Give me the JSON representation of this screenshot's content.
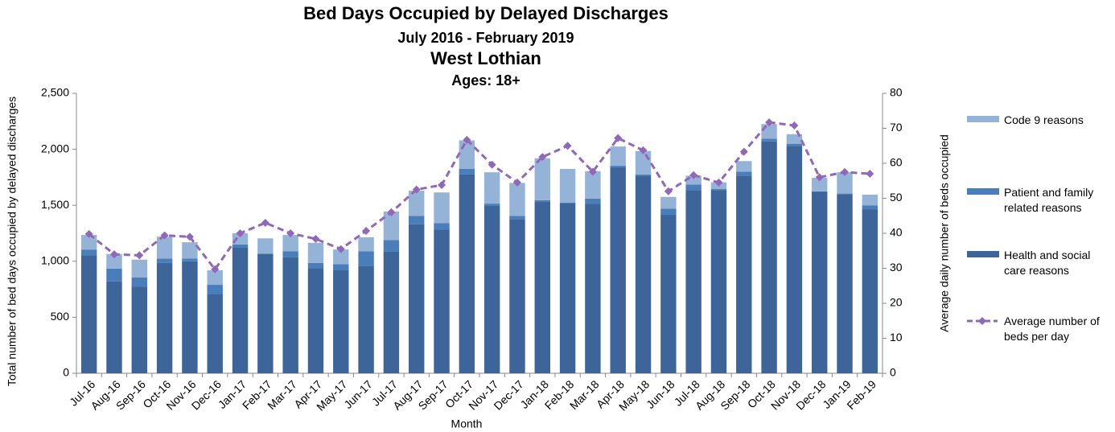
{
  "chart_data": {
    "type": "bar-line",
    "title": "Bed Days Occupied by Delayed Discharges",
    "subtitles": [
      "July 2016 - February 2019",
      "West Lothian",
      "Ages: 18+"
    ],
    "xlabel": "Month",
    "ylabel": "Total number of bed days occupied by delayed discharges",
    "y2label": "Average daily number of beds occupied",
    "categories": [
      "Jul-16",
      "Aug-16",
      "Sep-16",
      "Oct-16",
      "Nov-16",
      "Dec-16",
      "Jan-17",
      "Feb-17",
      "Mar-17",
      "Apr-17",
      "May-17",
      "Jun-17",
      "Jul-17",
      "Aug-17",
      "Sep-17",
      "Oct-17",
      "Nov-17",
      "Dec-17",
      "Jan-18",
      "Feb-18",
      "Mar-18",
      "Apr-18",
      "May-18",
      "Jun-18",
      "Jul-18",
      "Aug-18",
      "Sep-18",
      "Oct-18",
      "Nov-18",
      "Dec-18",
      "Jan-19",
      "Feb-19"
    ],
    "series": [
      {
        "name": "Health and social care reasons",
        "color": "#3e6599",
        "stack": true,
        "values": [
          1055,
          820,
          775,
          985,
          1000,
          710,
          1125,
          1065,
          1035,
          940,
          925,
          960,
          1085,
          1330,
          1285,
          1775,
          1500,
          1375,
          1530,
          1520,
          1515,
          1840,
          1760,
          1415,
          1635,
          1635,
          1765,
          2070,
          2030,
          1620,
          1600,
          1465
        ]
      },
      {
        "name": "Patient and family related reasons",
        "color": "#4a7ebb",
        "stack": true,
        "values": [
          50,
          115,
          80,
          40,
          25,
          80,
          25,
          5,
          55,
          45,
          50,
          130,
          105,
          75,
          55,
          50,
          15,
          30,
          15,
          5,
          45,
          15,
          15,
          55,
          50,
          10,
          35,
          25,
          20,
          5,
          5,
          35
        ]
      },
      {
        "name": "Code 9 reasons",
        "color": "#95b3d7",
        "stack": true,
        "values": [
          130,
          130,
          160,
          195,
          145,
          130,
          100,
          135,
          145,
          180,
          130,
          125,
          255,
          225,
          275,
          255,
          280,
          295,
          375,
          300,
          245,
          170,
          210,
          105,
          80,
          60,
          95,
          130,
          85,
          120,
          190,
          95
        ]
      },
      {
        "name": "Average number of beds per day",
        "color": "#9068b8",
        "axis": "y2",
        "line": true,
        "values": [
          39.8,
          34,
          33.7,
          39.4,
          39,
          29.7,
          40,
          43,
          40,
          38.4,
          35.5,
          40.7,
          46,
          52.5,
          53.8,
          66.7,
          59.6,
          54.5,
          61.8,
          65,
          57.6,
          67.2,
          63.7,
          52,
          56.6,
          54.5,
          63.3,
          71.7,
          70.8,
          56,
          57.5,
          57
        ]
      }
    ],
    "legend_order": [
      2,
      1,
      0,
      3
    ],
    "ylim": [
      0,
      2500
    ],
    "yticks": [
      0,
      500,
      {
        "value": 1000,
        "label": "1,000"
      },
      {
        "value": 1500,
        "label": "1,500"
      },
      {
        "value": 2000,
        "label": "2,000"
      },
      {
        "value": 2500,
        "label": "2,500"
      }
    ],
    "y2lim": [
      0,
      80
    ],
    "y2ticks": [
      0,
      10,
      20,
      30,
      40,
      50,
      60,
      70,
      80
    ],
    "grid": false
  }
}
